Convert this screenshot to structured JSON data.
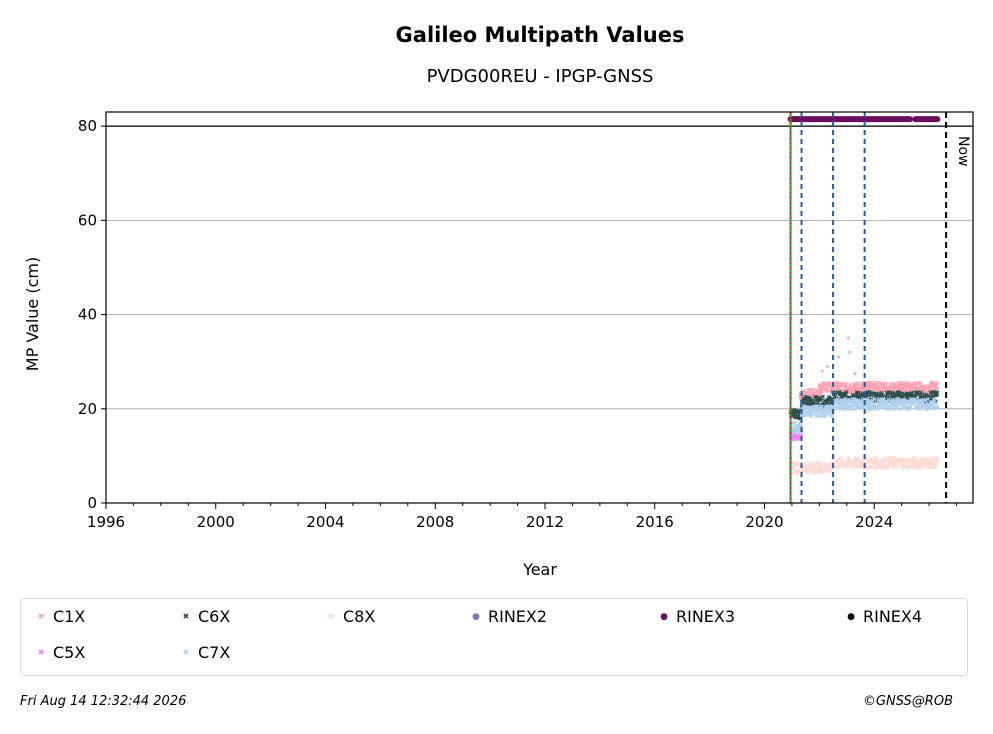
{
  "chart_data": {
    "type": "scatter",
    "title": "Galileo Multipath Values",
    "subtitle": "PVDG00REU - IPGP-GNSS",
    "xlabel": "Year",
    "ylabel": "MP Value (cm)",
    "xlim": [
      1996,
      2027.6
    ],
    "ylim": [
      0,
      83
    ],
    "x_ticks": [
      "1996",
      "2000",
      "2004",
      "2008",
      "2012",
      "2016",
      "2020",
      "2024"
    ],
    "y_ticks": [
      "0",
      "20",
      "40",
      "60",
      "80"
    ],
    "grid": "horizontal",
    "reference_line_y": 80,
    "now_label": "Now",
    "now_x": 2026.62,
    "event_lines": [
      {
        "x": 2020.95,
        "color": "#2ca02c",
        "style": "solid"
      },
      {
        "x": 2020.95,
        "color": "#d62728",
        "style": "dotted"
      },
      {
        "x": 2021.35,
        "color": "#1f5fa8",
        "style": "dashed"
      },
      {
        "x": 2022.5,
        "color": "#1f5fa8",
        "style": "dashed"
      },
      {
        "x": 2023.65,
        "color": "#1f5fa8",
        "style": "dashed"
      }
    ],
    "rinex3_coverage": {
      "y": 81.5,
      "segments": [
        [
          2020.95,
          2025.3
        ],
        [
          2025.5,
          2026.3
        ]
      ]
    },
    "series": [
      {
        "name": "C1X",
        "color": "#ffa3b1",
        "marker": "x",
        "segments": [
          {
            "x_start": 2021.3,
            "x_end": 2022.0,
            "y": 23
          },
          {
            "x_start": 2022.0,
            "x_end": 2026.3,
            "y": 24.5
          }
        ]
      },
      {
        "name": "C5X",
        "color": "#ff80ff",
        "marker": "x",
        "segments": [
          {
            "x_start": 2020.95,
            "x_end": 2021.35,
            "y": 14.5
          }
        ]
      },
      {
        "name": "C6X",
        "color": "#2f4f4f",
        "marker": "x",
        "segments": [
          {
            "x_start": 2020.95,
            "x_end": 2021.35,
            "y": 19
          },
          {
            "x_start": 2021.35,
            "x_end": 2022.5,
            "y": 21.5
          },
          {
            "x_start": 2022.5,
            "x_end": 2026.3,
            "y": 22.5
          }
        ]
      },
      {
        "name": "C7X",
        "color": "#b0d0f0",
        "marker": "x",
        "segments": [
          {
            "x_start": 2020.95,
            "x_end": 2021.35,
            "y": 16
          },
          {
            "x_start": 2021.35,
            "x_end": 2022.5,
            "y": 19.5
          },
          {
            "x_start": 2022.5,
            "x_end": 2026.3,
            "y": 21
          }
        ]
      },
      {
        "name": "C8X",
        "color": "#fcdcd4",
        "marker": "x",
        "segments": [
          {
            "x_start": 2020.95,
            "x_end": 2022.5,
            "y": 7.5
          },
          {
            "x_start": 2022.5,
            "x_end": 2026.3,
            "y": 8.5
          }
        ]
      },
      {
        "name": "RINEX2",
        "color": "#7b7bbb",
        "marker": "o",
        "segments": []
      },
      {
        "name": "RINEX3",
        "color": "#6a0f5e",
        "marker": "o",
        "segments": []
      },
      {
        "name": "RINEX4",
        "color": "#1a0020",
        "marker": "o",
        "segments": []
      }
    ]
  },
  "legend": [
    {
      "label": "C1X",
      "color": "#ffa3b1",
      "marker": "x"
    },
    {
      "label": "C6X",
      "color": "#2f4f4f",
      "marker": "x"
    },
    {
      "label": "C8X",
      "color": "#fcdcd4",
      "marker": "x"
    },
    {
      "label": "RINEX2",
      "color": "#7b7bbb",
      "marker": "o"
    },
    {
      "label": "RINEX3",
      "color": "#6a0f5e",
      "marker": "o"
    },
    {
      "label": "RINEX4",
      "color": "#1a0020",
      "marker": "o"
    },
    {
      "label": "C5X",
      "color": "#ff80ff",
      "marker": "x"
    },
    {
      "label": "C7X",
      "color": "#b0d0f0",
      "marker": "x"
    }
  ],
  "footer": {
    "timestamp": "Fri Aug 14 12:32:44 2026",
    "copyright": "©GNSS@ROB"
  }
}
